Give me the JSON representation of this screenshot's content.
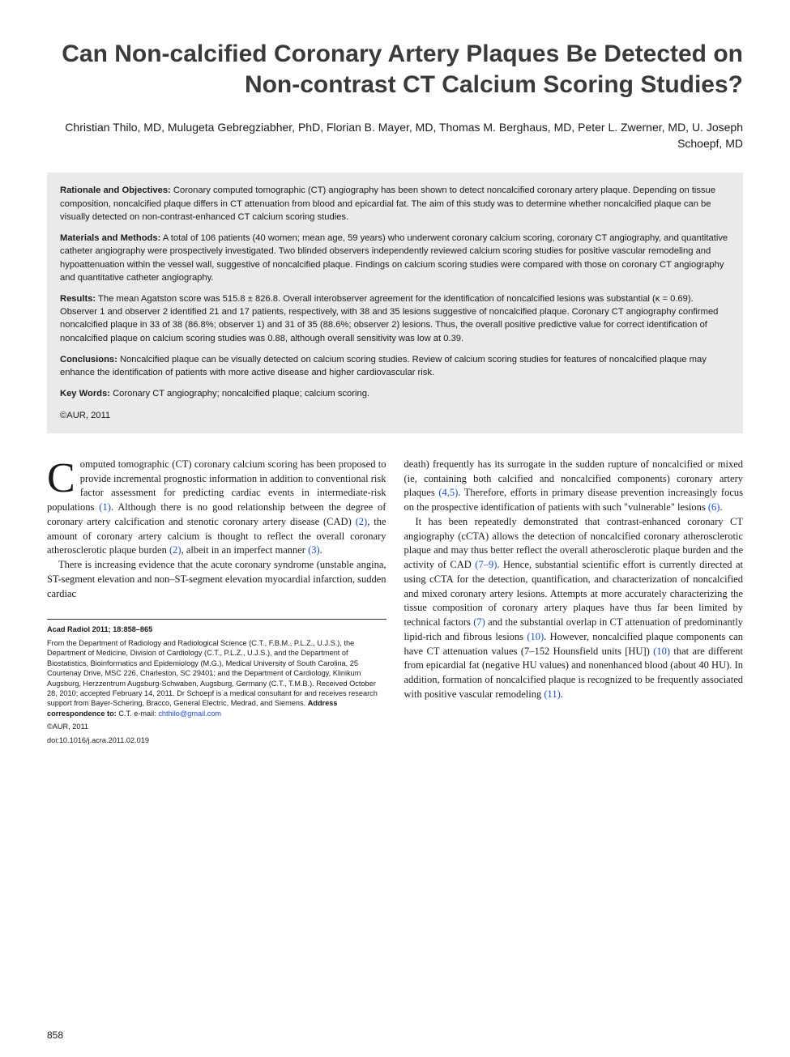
{
  "title": "Can Non-calcified Coronary Artery Plaques Be Detected on Non-contrast CT Calcium Scoring Studies?",
  "authors": "Christian Thilo, MD, Mulugeta Gebregziabher, PhD, Florian B. Mayer, MD, Thomas M. Berghaus, MD, Peter L. Zwerner, MD, U. Joseph Schoepf, MD",
  "abstract": {
    "rationale_label": "Rationale and Objectives:",
    "rationale": " Coronary computed tomographic (CT) angiography has been shown to detect noncalcified coronary artery plaque. Depending on tissue composition, noncalcified plaque differs in CT attenuation from blood and epicardial fat. The aim of this study was to determine whether noncalcified plaque can be visually detected on non-contrast-enhanced CT calcium scoring studies.",
    "methods_label": "Materials and Methods:",
    "methods": " A total of 106 patients (40 women; mean age, 59 years) who underwent coronary calcium scoring, coronary CT angiography, and quantitative catheter angiography were prospectively investigated. Two blinded observers independently reviewed calcium scoring studies for positive vascular remodeling and hypoattenuation within the vessel wall, suggestive of noncalcified plaque. Findings on calcium scoring studies were compared with those on coronary CT angiography and quantitative catheter angiography.",
    "results_label": "Results:",
    "results": " The mean Agatston score was 515.8 ± 826.8. Overall interobserver agreement for the identification of noncalcified lesions was substantial (κ = 0.69). Observer 1 and observer 2 identified 21 and 17 patients, respectively, with 38 and 35 lesions suggestive of noncalcified plaque. Coronary CT angiography confirmed noncalcified plaque in 33 of 38 (86.8%; observer 1) and 31 of 35 (88.6%; observer 2) lesions. Thus, the overall positive predictive value for correct identification of noncalcified plaque on calcium scoring studies was 0.88, although overall sensitivity was low at 0.39.",
    "conclusions_label": "Conclusions:",
    "conclusions": " Noncalcified plaque can be visually detected on calcium scoring studies. Review of calcium scoring studies for features of noncalcified plaque may enhance the identification of patients with more active disease and higher cardiovascular risk.",
    "keywords_label": "Key Words:",
    "keywords": " Coronary CT angiography; noncalcified plaque; calcium scoring.",
    "copyright": "©AUR, 2011"
  },
  "body": {
    "left": {
      "p1a": "omputed tomographic (CT) coronary calcium scoring has been proposed to provide incremental prognostic information in addition to conventional risk factor assessment for predicting cardiac events in intermediate-risk populations ",
      "r1": "(1)",
      "p1b": ". Although there is no good relationship between the degree of coronary artery calcification and stenotic coronary artery disease (CAD) ",
      "r2": "(2)",
      "p1c": ", the amount of coronary artery calcium is thought to reflect the overall coronary atherosclerotic plaque burden ",
      "r2b": "(2)",
      "p1d": ", albeit in an imperfect manner ",
      "r3": "(3)",
      "p1e": ".",
      "p2": "There is increasing evidence that the acute coronary syndrome (unstable angina, ST-segment elevation and non–ST-segment elevation myocardial infarction, sudden cardiac"
    },
    "right": {
      "p1a": "death) frequently has its surrogate in the sudden rupture of noncalcified or mixed (ie, containing both calcified and noncalcified components) coronary artery plaques ",
      "r45": "(4,5)",
      "p1b": ". Therefore, efforts in primary disease prevention increasingly focus on the prospective identification of patients with such \"vulnerable\" lesions ",
      "r6": "(6)",
      "p1c": ".",
      "p2a": "It has been repeatedly demonstrated that contrast-enhanced coronary CT angiography (cCTA) allows the detection of noncalcified coronary atherosclerotic plaque and may thus better reflect the overall atherosclerotic plaque burden and the activity of CAD ",
      "r79": "(7–9)",
      "p2b": ". Hence, substantial scientific effort is currently directed at using cCTA for the detection, quantification, and characterization of noncalcified and mixed coronary artery lesions. Attempts at more accurately characterizing the tissue composition of coronary artery plaques have thus far been limited by technical factors ",
      "r7": "(7)",
      "p2c": " and the substantial overlap in CT attenuation of predominantly lipid-rich and fibrous lesions ",
      "r10": "(10)",
      "p2d": ". However, noncalcified plaque components can have CT attenuation values (7–152 Hounsfield units [HU]) ",
      "r10b": "(10)",
      "p2e": " that are different from epicardial fat (negative HU values) and nonenhanced blood (about 40 HU). In addition, formation of noncalcified plaque is recognized to be frequently associated with positive vascular remodeling ",
      "r11": "(11)",
      "p2f": "."
    }
  },
  "meta": {
    "journal": "Acad Radiol 2011; 18:858–865",
    "affil": "From the Department of Radiology and Radiological Science (C.T., F.B.M., P.L.Z., U.J.S.), the Department of Medicine, Division of Cardiology (C.T., P.L.Z., U.J.S.), and the Department of Biostatistics, Bioinformatics and Epidemiology (M.G.), Medical University of South Carolina, 25 Courtenay Drive, MSC 226, Charleston, SC 29401; and the Department of Cardiology, Klinikum Augsburg, Herzzentrum Augsburg-Schwaben, Augsburg, Germany (C.T., T.M.B.). Received October 28, 2010; accepted February 14, 2011. Dr Schoepf is a medical consultant for and receives research support from Bayer-Schering, Bracco, General Electric, Medrad, and Siemens. ",
    "corr_label": "Address correspondence to:",
    "corr": " C.T. e-mail: ",
    "email": "chthilo@gmail.com",
    "copy": "©AUR, 2011",
    "doi": "doi:10.1016/j.acra.2011.02.019"
  },
  "page_number": "858",
  "colors": {
    "background": "#ffffff",
    "text": "#1a1a1a",
    "title": "#3a3a3a",
    "abstract_bg": "#ebe9ea",
    "link": "#1a4bd1"
  }
}
